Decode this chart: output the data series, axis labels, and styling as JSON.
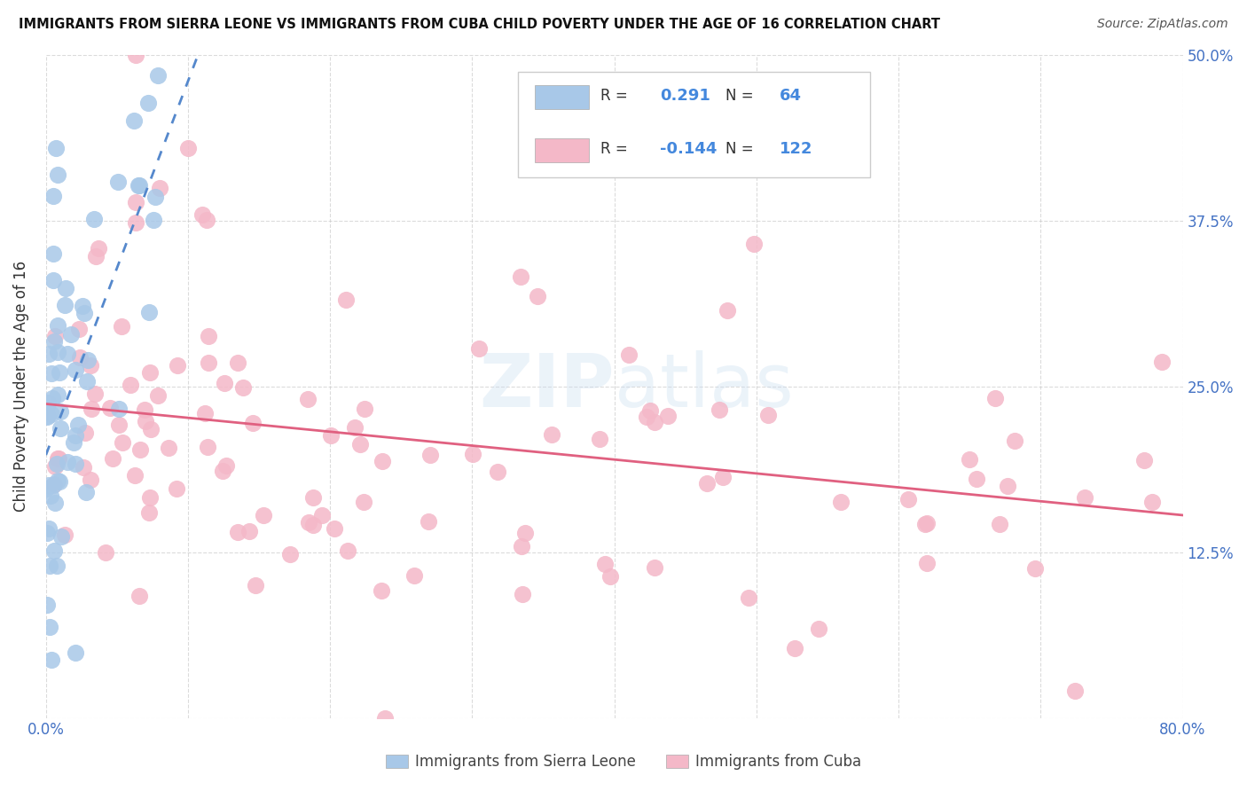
{
  "title": "IMMIGRANTS FROM SIERRA LEONE VS IMMIGRANTS FROM CUBA CHILD POVERTY UNDER THE AGE OF 16 CORRELATION CHART",
  "source": "Source: ZipAtlas.com",
  "ylabel": "Child Poverty Under the Age of 16",
  "xlim": [
    0.0,
    0.8
  ],
  "ylim": [
    0.0,
    0.5
  ],
  "xtick_positions": [
    0.0,
    0.1,
    0.2,
    0.3,
    0.4,
    0.5,
    0.6,
    0.7,
    0.8
  ],
  "xtick_labels": [
    "0.0%",
    "",
    "",
    "",
    "",
    "",
    "",
    "",
    "80.0%"
  ],
  "ytick_positions": [
    0.0,
    0.125,
    0.25,
    0.375,
    0.5
  ],
  "ytick_labels_right": [
    "",
    "12.5%",
    "25.0%",
    "37.5%",
    "50.0%"
  ],
  "sierra_leone_color": "#a8c8e8",
  "cuba_color": "#f4b8c8",
  "sl_line_color": "#5588cc",
  "cuba_line_color": "#e06080",
  "sierra_leone_R": "0.291",
  "sierra_leone_N": "64",
  "cuba_R": "-0.144",
  "cuba_N": "122",
  "watermark": "ZIPatlas",
  "tick_color": "#4472c4",
  "label_color": "#333333",
  "grid_color": "#cccccc",
  "legend_text_color": "#333333",
  "legend_value_color": "#4488dd"
}
